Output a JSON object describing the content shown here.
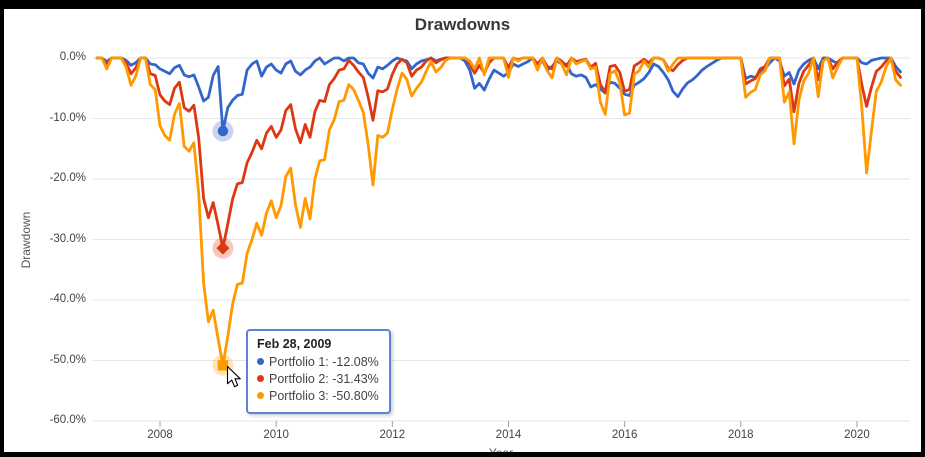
{
  "title": "Drawdowns",
  "y_axis": {
    "title": "Drawdown",
    "ticks": [
      {
        "label": "0.0%",
        "value": 0
      },
      {
        "label": "-10.0%",
        "value": -10
      },
      {
        "label": "-20.0%",
        "value": -20
      },
      {
        "label": "-30.0%",
        "value": -30
      },
      {
        "label": "-40.0%",
        "value": -40
      },
      {
        "label": "-50.0%",
        "value": -50
      },
      {
        "label": "-60.0%",
        "value": -60
      }
    ]
  },
  "x_axis": {
    "title": "Year",
    "ticks": [
      {
        "label": "2008",
        "year": 2008
      },
      {
        "label": "2010",
        "year": 2010
      },
      {
        "label": "2012",
        "year": 2012
      },
      {
        "label": "2014",
        "year": 2014
      },
      {
        "label": "2016",
        "year": 2016
      },
      {
        "label": "2018",
        "year": 2018
      },
      {
        "label": "2020",
        "year": 2020
      }
    ]
  },
  "tooltip": {
    "date": "Feb 28, 2009",
    "rows": [
      {
        "series": "Portfolio 1",
        "text": "Portfolio 1: -12.08%",
        "color": "#3366cc"
      },
      {
        "series": "Portfolio 2",
        "text": "Portfolio 2: -31.43%",
        "color": "#dc3912"
      },
      {
        "series": "Portfolio 3",
        "text": "Portfolio 3: -50.80%",
        "color": "#ff9900"
      }
    ]
  },
  "chart_data": {
    "type": "line",
    "title": "Drawdowns",
    "xlabel": "Year",
    "ylabel": "Drawdown",
    "frequency": "monthly",
    "start_month": "2006-12",
    "end_month": "2020-10",
    "ylim": [
      -60,
      0
    ],
    "grid": true,
    "highlight_index": 26,
    "highlight_date": "Feb 28, 2009",
    "series": [
      {
        "name": "Portfolio 1",
        "color": "#3366cc",
        "marker": "circle",
        "max_drawdown": "-12.08%",
        "values": [
          0,
          0,
          -0.6,
          0,
          0,
          0,
          -0.4,
          -1.2,
          -0.8,
          0,
          0,
          -1.0,
          -1.1,
          -1.8,
          -2.2,
          -2.6,
          -1.6,
          -1.2,
          -2.8,
          -3.1,
          -2.8,
          -4.8,
          -7.1,
          -6.5,
          -2.9,
          -1.4,
          -12.08,
          -8.2,
          -7.0,
          -6.2,
          -6.0,
          -2.0,
          -1.0,
          -0.5,
          -3.0,
          -1.5,
          -1.0,
          -2.0,
          -2.5,
          -1.0,
          -0.5,
          -2.2,
          -2.8,
          -2.0,
          -1.5,
          -0.5,
          0,
          -1.0,
          -0.5,
          0,
          0,
          -0.5,
          0,
          0,
          -0.8,
          -1.0,
          -2.5,
          -3.3,
          -1.5,
          -1.8,
          -1.2,
          -0.5,
          0,
          -0.3,
          -0.5,
          -1.8,
          -1.0,
          -0.5,
          -0.3,
          0,
          -0.5,
          -0.2,
          0,
          0,
          0,
          0,
          -0.5,
          -2.0,
          -5.0,
          -4.2,
          -5.3,
          -3.5,
          -2.0,
          -2.5,
          -3.0,
          -2.4,
          -1.0,
          -1.4,
          -1.0,
          -0.6,
          0,
          -1.0,
          -0.4,
          -2.0,
          -1.4,
          -0.5,
          -1.0,
          -1.0,
          -2.6,
          -3.0,
          -2.8,
          -3.2,
          -4.8,
          -4.4,
          -5.1,
          -5.8,
          -4.0,
          -4.2,
          -5.0,
          -6.0,
          -6.2,
          -4.5,
          -4.0,
          -3.4,
          -2.4,
          -1.0,
          -1.4,
          -2.4,
          -3.6,
          -5.5,
          -6.4,
          -5.1,
          -4.1,
          -3.6,
          -2.9,
          -2.0,
          -1.4,
          -0.9,
          -0.4,
          0,
          0,
          0,
          0,
          0,
          -3.4,
          -3.0,
          -3.2,
          -2.4,
          -1.8,
          -0.8,
          0,
          -0.5,
          -3.0,
          -2.4,
          -4.3,
          -2.0,
          -1.0,
          -0.4,
          0,
          -1.8,
          0,
          0,
          -0.5,
          -0.9,
          0,
          0,
          0,
          0,
          -0.8,
          -1.0,
          -0.4,
          -0.2,
          0,
          0,
          0,
          -1.4,
          -2.3
        ]
      },
      {
        "name": "Portfolio 2",
        "color": "#dc3912",
        "marker": "diamond",
        "max_drawdown": "-31.43%",
        "values": [
          0,
          0,
          -1.2,
          0,
          0,
          0,
          -0.8,
          -2.6,
          -1.6,
          0,
          0,
          -2.6,
          -2.9,
          -6.1,
          -7.1,
          -7.7,
          -5.0,
          -4.0,
          -8.2,
          -8.8,
          -7.8,
          -13.2,
          -23.2,
          -26.4,
          -23.9,
          -27.6,
          -31.43,
          -27.4,
          -23.3,
          -20.8,
          -20.6,
          -17.3,
          -15.6,
          -13.6,
          -15.0,
          -12.4,
          -11.3,
          -13.1,
          -11.9,
          -8.7,
          -7.7,
          -11.7,
          -14.0,
          -11.0,
          -13.1,
          -8.9,
          -7.0,
          -7.2,
          -4.4,
          -3.4,
          -2.0,
          -1.8,
          -0.4,
          -1.2,
          -2.3,
          -3.2,
          -6.4,
          -10.3,
          -5.4,
          -5.6,
          -5.1,
          -2.7,
          -1.0,
          -0.2,
          -0.8,
          -3.0,
          -2.0,
          -1.5,
          -0.5,
          0,
          -0.8,
          -0.3,
          0,
          0,
          0,
          0,
          0,
          -1.0,
          -2.5,
          -1.2,
          -2.5,
          -0.8,
          0,
          0,
          0,
          -1.6,
          0,
          -0.3,
          0,
          0,
          0,
          -1.0,
          0,
          -1.4,
          -1.8,
          0,
          -0.5,
          -1.4,
          0,
          -0.6,
          -0.4,
          -0.2,
          -1.5,
          -0.9,
          -4.4,
          -5.6,
          -1.4,
          -1.2,
          -2.4,
          -5.5,
          -5.2,
          -1.3,
          -0.8,
          -0.2,
          -0.8,
          0,
          0,
          -0.3,
          -1.7,
          -2.1,
          -1.1,
          -0.4,
          0,
          0,
          0,
          0,
          0,
          0,
          0,
          0,
          0,
          0,
          0,
          0,
          -4.3,
          -3.8,
          -3.4,
          -1.8,
          -1.4,
          0,
          0,
          0,
          -4.6,
          -3.5,
          -8.9,
          -4.2,
          -2.2,
          -1.2,
          0,
          -3.6,
          -0.3,
          0,
          -1.8,
          -0.7,
          0,
          0,
          0,
          0,
          -4.4,
          -8.0,
          -4.8,
          -2.2,
          -1.5,
          -0.5,
          0,
          -2.2,
          -3.2
        ]
      },
      {
        "name": "Portfolio 3",
        "color": "#ff9900",
        "marker": "square",
        "max_drawdown": "-50.80%",
        "values": [
          0,
          0,
          -1.8,
          0,
          0,
          0,
          -1.5,
          -4.5,
          -3.0,
          0,
          0,
          -4.4,
          -5.2,
          -11.2,
          -12.8,
          -13.6,
          -9.3,
          -7.5,
          -14.6,
          -15.4,
          -14.0,
          -22.4,
          -37.2,
          -43.6,
          -41.7,
          -46.4,
          -50.8,
          -46.0,
          -40.7,
          -37.4,
          -37.2,
          -32.3,
          -30.0,
          -27.3,
          -29.3,
          -25.6,
          -23.6,
          -26.4,
          -24.4,
          -19.6,
          -18.2,
          -24.3,
          -28.0,
          -23.2,
          -26.6,
          -20.0,
          -17.0,
          -16.8,
          -11.9,
          -10.2,
          -7.2,
          -7.0,
          -4.4,
          -5.2,
          -7.0,
          -9.0,
          -14.2,
          -21.0,
          -12.8,
          -13.1,
          -12.4,
          -8.5,
          -5.1,
          -2.5,
          -3.5,
          -6.3,
          -5.0,
          -4.0,
          -2.2,
          -0.6,
          -2.3,
          -1.6,
          -0.4,
          0,
          0,
          0,
          0,
          -0.5,
          -1.8,
          0,
          -2.8,
          0,
          0,
          0,
          0,
          -3.2,
          0,
          -0.5,
          0,
          0,
          0,
          -2.0,
          0,
          -2.1,
          -3.3,
          0,
          -1.0,
          -2.8,
          0,
          -1.0,
          -0.6,
          -0.3,
          -1.8,
          -1.5,
          -7.3,
          -9.3,
          -2.6,
          -2.1,
          -4.1,
          -9.4,
          -9.1,
          -2.7,
          -2.1,
          -0.5,
          -1.5,
          0,
          0,
          -0.3,
          -2.2,
          -1.0,
          0,
          0,
          0,
          0,
          0,
          0,
          0,
          0,
          0,
          0,
          0,
          0,
          0,
          0,
          -6.5,
          -5.7,
          -5.2,
          -2.8,
          -2.1,
          0,
          0,
          0,
          -7.3,
          -5.6,
          -14.2,
          -7.0,
          -3.8,
          -2.5,
          0,
          -6.4,
          -0.5,
          0,
          -3.3,
          -1.5,
          0,
          0,
          0,
          0,
          -8.2,
          -19.0,
          -12.0,
          -5.5,
          -4.0,
          -1.5,
          0,
          -3.6,
          -4.5
        ]
      }
    ]
  }
}
